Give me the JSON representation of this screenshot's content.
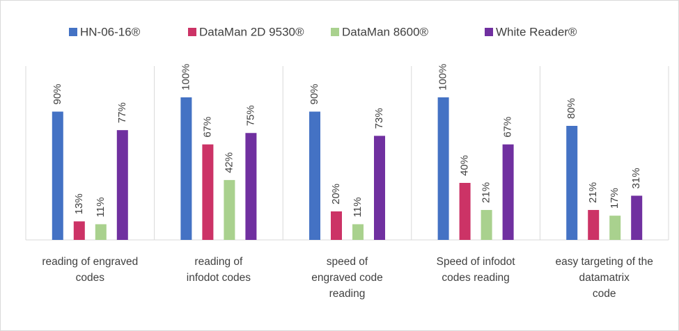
{
  "chart_data": {
    "type": "bar",
    "categories": [
      [
        "reading of engraved",
        "codes"
      ],
      [
        "reading of",
        "infodot  codes"
      ],
      [
        "speed of",
        "engraved code",
        "reading"
      ],
      [
        "Speed  of  infodot",
        "codes reading"
      ],
      [
        "easy targeting of the",
        "datamatrix",
        "code"
      ]
    ],
    "series": [
      {
        "name": "HN-06-16®",
        "color": "#4472c4",
        "values": [
          90,
          100,
          90,
          100,
          80
        ],
        "value_labels": [
          "90%",
          "100%",
          "90%",
          "100%",
          "80%"
        ]
      },
      {
        "name": "DataMan 2D 9530®",
        "color": "#cc3366",
        "values": [
          13,
          67,
          20,
          40,
          21
        ],
        "value_labels": [
          "13%",
          "67%",
          "20%",
          "40%",
          "21%"
        ]
      },
      {
        "name": "DataMan 8600®",
        "color": "#a9d18e",
        "values": [
          11,
          42,
          11,
          21,
          17
        ],
        "value_labels": [
          "11%",
          "42%",
          "11%",
          "21%",
          "17%"
        ]
      },
      {
        "name": "White Reader®",
        "color": "#7030a0",
        "values": [
          77,
          75,
          73,
          67,
          31
        ],
        "value_labels": [
          "77%",
          "75%",
          "73%",
          "67%",
          "31%"
        ]
      }
    ],
    "ylim": [
      0,
      120
    ],
    "legend": "top"
  }
}
